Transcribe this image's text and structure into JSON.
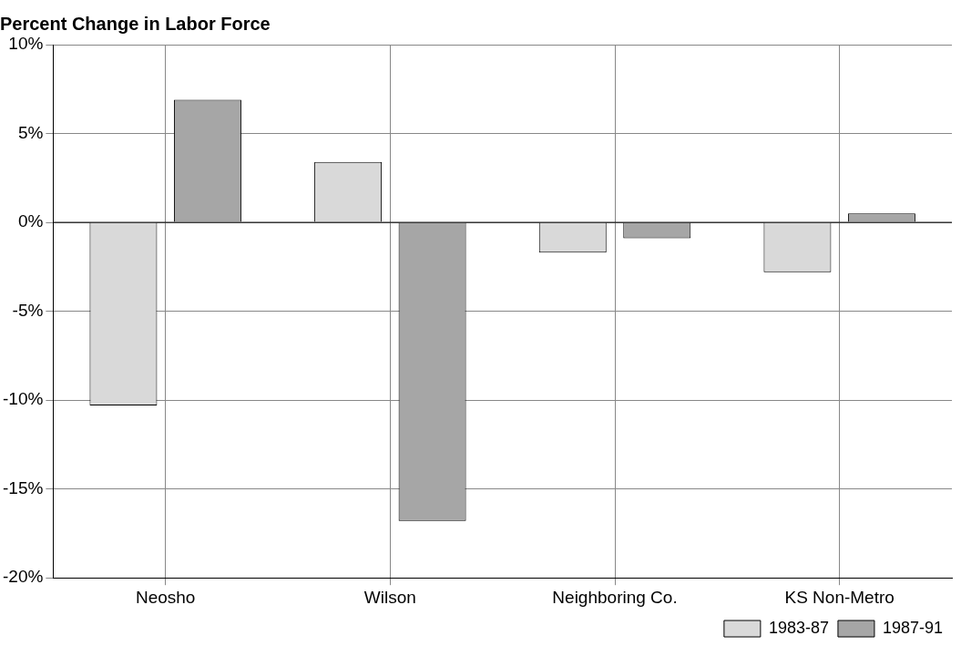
{
  "chart_data": {
    "type": "bar",
    "title": "Percent Change in Labor Force",
    "categories": [
      "Neosho",
      "Wilson",
      "Neighboring Co.",
      "KS Non-Metro"
    ],
    "series": [
      {
        "name": "1983-87",
        "color": "#d9d9d9",
        "values": [
          -10.3,
          3.4,
          -1.7,
          -2.8
        ]
      },
      {
        "name": "1987-91",
        "color": "#a6a6a6",
        "values": [
          6.9,
          -16.8,
          -0.9,
          0.5
        ]
      }
    ],
    "ylim": [
      -20,
      10
    ],
    "yticks": [
      {
        "value": -20,
        "label": "-20%"
      },
      {
        "value": -15,
        "label": "-15%"
      },
      {
        "value": -10,
        "label": "-10%"
      },
      {
        "value": -5,
        "label": "-5%"
      },
      {
        "value": 0,
        "label": "0%"
      },
      {
        "value": 5,
        "label": "5%"
      },
      {
        "value": 10,
        "label": "10%"
      }
    ],
    "grid": true,
    "legend": "bottom right"
  }
}
